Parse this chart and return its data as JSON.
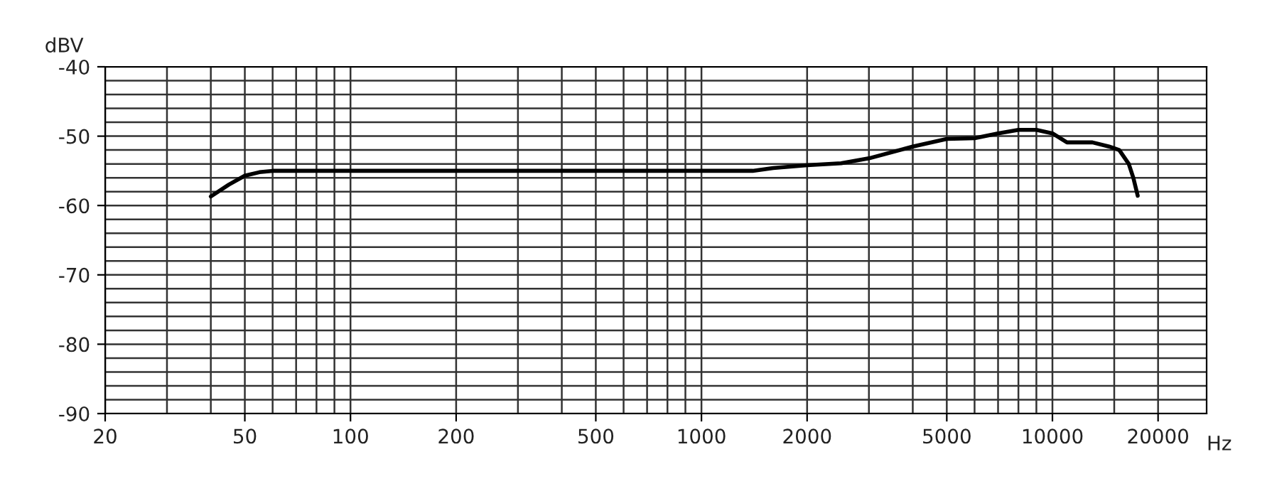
{
  "chart_data": {
    "type": "line",
    "xlabel": "Hz",
    "ylabel": "dBV",
    "log": "x",
    "grid": true,
    "marker": "none",
    "line_style": "solid",
    "xlim": [
      20,
      27500
    ],
    "ylim": [
      -90,
      -40
    ],
    "xticks": [
      20,
      {
        "value": 30,
        "label": null
      },
      {
        "value": 40,
        "label": null
      },
      50,
      {
        "value": 60,
        "label": null
      },
      {
        "value": 70,
        "label": null
      },
      {
        "value": 80,
        "label": null
      },
      {
        "value": 90,
        "label": null
      },
      100,
      200,
      {
        "value": 300,
        "label": null
      },
      {
        "value": 400,
        "label": null
      },
      500,
      {
        "value": 600,
        "label": null
      },
      {
        "value": 700,
        "label": null
      },
      {
        "value": 800,
        "label": null
      },
      {
        "value": 900,
        "label": null
      },
      1000,
      2000,
      {
        "value": 3000,
        "label": null
      },
      {
        "value": 4000,
        "label": null
      },
      5000,
      {
        "value": 6000,
        "label": null
      },
      {
        "value": 7000,
        "label": null
      },
      {
        "value": 8000,
        "label": null
      },
      {
        "value": 9000,
        "label": null
      },
      10000,
      {
        "value": 15000,
        "label": null
      },
      20000
    ],
    "yticks": [
      -90,
      {
        "value": -88,
        "label": null
      },
      {
        "value": -86,
        "label": null
      },
      {
        "value": -84,
        "label": null
      },
      {
        "value": -82,
        "label": null
      },
      -80,
      {
        "value": -78,
        "label": null
      },
      {
        "value": -76,
        "label": null
      },
      {
        "value": -74,
        "label": null
      },
      {
        "value": -72,
        "label": null
      },
      -70,
      {
        "value": -68,
        "label": null
      },
      {
        "value": -66,
        "label": null
      },
      {
        "value": -64,
        "label": null
      },
      {
        "value": -62,
        "label": null
      },
      -60,
      {
        "value": -58,
        "label": null
      },
      {
        "value": -56,
        "label": null
      },
      {
        "value": -54,
        "label": null
      },
      {
        "value": -52,
        "label": null
      },
      -50,
      {
        "value": -48,
        "label": null
      },
      {
        "value": -46,
        "label": null
      },
      {
        "value": -44,
        "label": null
      },
      {
        "value": -42,
        "label": null
      },
      -40
    ],
    "series": [
      {
        "color": "#000000",
        "x": [
          40,
          45,
          50,
          55,
          60,
          80,
          100,
          200,
          500,
          1000,
          1400,
          1600,
          2000,
          2500,
          3000,
          4000,
          5000,
          6000,
          7000,
          8000,
          9000,
          10000,
          11000,
          13000,
          14500,
          15500,
          16500,
          17000,
          17500
        ],
        "values": [
          -58.7,
          -57,
          -55.7,
          -55.2,
          -55,
          -55,
          -55,
          -55,
          -55,
          -55,
          -55,
          -54.6,
          -54.2,
          -53.9,
          -53.2,
          -51.5,
          -50.4,
          -50.3,
          -49.6,
          -49.1,
          -49.1,
          -49.6,
          -50.9,
          -50.9,
          -51.5,
          -52,
          -54,
          -56,
          -58.6
        ]
      }
    ]
  }
}
